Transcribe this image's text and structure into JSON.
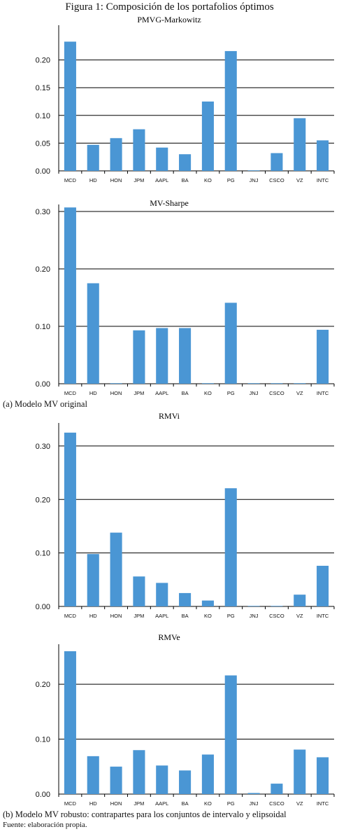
{
  "figure_title": "Figura 1: Composición de los portafolios óptimos",
  "caption_a": "(a) Modelo MV original",
  "caption_b": "(b) Modelo MV robusto: contrapartes para los conjuntos de intervalo y elipsoidal",
  "source": "Fuente: elaboración propia.",
  "colors": {
    "bar": "#4a96d4",
    "grid": "#000000",
    "text": "#111111"
  },
  "chart_data": [
    {
      "type": "bar",
      "title": "PMVG-Markowitz",
      "categories": [
        "MCD",
        "HD",
        "HON",
        "JPM",
        "AAPL",
        "BA",
        "KO",
        "PG",
        "JNJ",
        "CSCO",
        "VZ",
        "INTC"
      ],
      "values": [
        0.233,
        0.047,
        0.059,
        0.075,
        0.042,
        0.03,
        0.125,
        0.216,
        0.001,
        0.032,
        0.095,
        0.055
      ],
      "ylim": [
        0,
        0.25
      ],
      "yticks": [
        "0.00",
        "0.05",
        "0.10",
        "0.15",
        "0.20"
      ],
      "grid": true
    },
    {
      "type": "bar",
      "title": "MV-Sharpe",
      "categories": [
        "MCD",
        "HD",
        "HON",
        "JPM",
        "AAPL",
        "BA",
        "KO",
        "PG",
        "JNJ",
        "CSCO",
        "VZ",
        "INTC"
      ],
      "values": [
        0.307,
        0.175,
        0.001,
        0.093,
        0.097,
        0.097,
        0.001,
        0.141,
        0.001,
        0.001,
        0.001,
        0.094
      ],
      "ylim": [
        0,
        0.3
      ],
      "yticks": [
        "0.00",
        "0.10",
        "0.20",
        "0.30"
      ],
      "grid": true
    },
    {
      "type": "bar",
      "title": "RMVi",
      "categories": [
        "MCD",
        "HD",
        "HON",
        "JPM",
        "AAPL",
        "BA",
        "KO",
        "PG",
        "JNJ",
        "CSCO",
        "VZ",
        "INTC"
      ],
      "values": [
        0.325,
        0.098,
        0.138,
        0.056,
        0.044,
        0.025,
        0.011,
        0.221,
        0.001,
        0.001,
        0.022,
        0.076
      ],
      "ylim": [
        0,
        0.33
      ],
      "yticks": [
        "0.00",
        "0.10",
        "0.20",
        "0.30"
      ],
      "grid": true
    },
    {
      "type": "bar",
      "title": "RMVe",
      "categories": [
        "MCD",
        "HD",
        "HON",
        "JPM",
        "AAPL",
        "BA",
        "KO",
        "PG",
        "JNJ",
        "CSCO",
        "VZ",
        "INTC"
      ],
      "values": [
        0.26,
        0.069,
        0.05,
        0.08,
        0.052,
        0.043,
        0.072,
        0.216,
        0.002,
        0.019,
        0.081,
        0.067
      ],
      "ylim": [
        0,
        0.26
      ],
      "yticks": [
        "0.00",
        "0.10",
        "0.20"
      ],
      "grid": true
    }
  ]
}
